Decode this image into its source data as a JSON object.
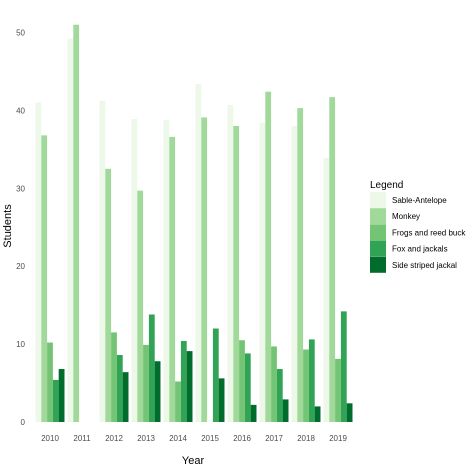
{
  "chart_data": {
    "type": "bar",
    "title": "",
    "xlabel": "Year",
    "ylabel": "Students",
    "ylim": [
      0,
      51.5
    ],
    "yticks": [
      0,
      10,
      20,
      30,
      40,
      50
    ],
    "grid": false,
    "legend_position": "right",
    "legend_title": "Legend",
    "categories": [
      "2010",
      "2011",
      "2012",
      "2013",
      "2014",
      "2015",
      "2016",
      "2017",
      "2018",
      "2019"
    ],
    "series": [
      {
        "name": "Sable-Antelope",
        "color": "#edf8e9",
        "values": [
          41,
          49.2,
          41.2,
          38.9,
          38.8,
          43.4,
          40.7,
          38.4,
          38,
          33.9
        ]
      },
      {
        "name": "Monkey",
        "color": "#a1d99b",
        "values": [
          36.8,
          51,
          32.5,
          29.7,
          36.6,
          39.1,
          38,
          42.4,
          40.3,
          41.7
        ]
      },
      {
        "name": "Frogs and reed buck",
        "color": "#74c476",
        "values": [
          10.2,
          null,
          11.5,
          9.9,
          5.2,
          null,
          10.5,
          9.7,
          9.3,
          8.1
        ]
      },
      {
        "name": "Fox and jackals",
        "color": "#31a354",
        "values": [
          5.4,
          null,
          8.6,
          13.8,
          10.4,
          12,
          8.8,
          6.8,
          10.6,
          14.2
        ]
      },
      {
        "name": "Side striped jackal",
        "color": "#006d2c",
        "values": [
          6.8,
          null,
          6.4,
          7.8,
          9.1,
          5.6,
          2.2,
          2.9,
          2,
          2.4
        ]
      }
    ]
  }
}
